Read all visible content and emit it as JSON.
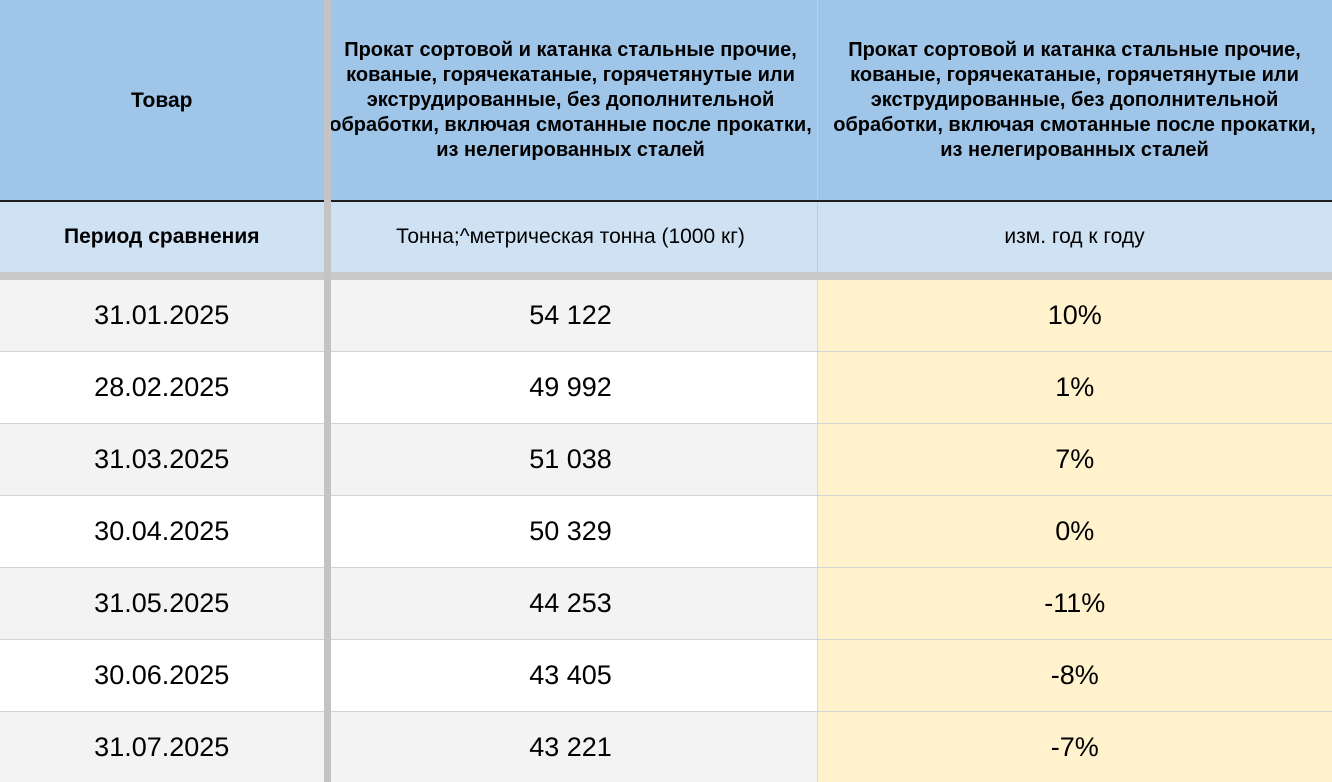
{
  "header": {
    "col1": "Товар",
    "col2": "Прокат сортовой и катанка стальные прочие, кованые, горячекатаные, горячетянутые или экструдированные, без дополнительной обработки, включая смотанные после прокатки, из нелегированных сталей",
    "col3": "Прокат сортовой и катанка стальные прочие, кованые, горячекатаные, горячетянутые или экструдированные, без дополнительной обработки, включая смотанные после прокатки, из нелегированных сталей"
  },
  "subheader": {
    "col1": "Период сравнения",
    "col2": "Тонна;^метрическая тонна (1000 кг)",
    "col3": "изм. год к году"
  },
  "rows": [
    {
      "date": "31.01.2025",
      "value": "54 122",
      "change": "10%"
    },
    {
      "date": "28.02.2025",
      "value": "49 992",
      "change": "1%"
    },
    {
      "date": "31.03.2025",
      "value": "51 038",
      "change": "7%"
    },
    {
      "date": "30.04.2025",
      "value": "50 329",
      "change": "0%"
    },
    {
      "date": "31.05.2025",
      "value": "44 253",
      "change": "-11%"
    },
    {
      "date": "30.06.2025",
      "value": "43 405",
      "change": "-8%"
    },
    {
      "date": "31.07.2025",
      "value": "43 221",
      "change": "-7%"
    }
  ],
  "colors": {
    "header_bg": "#9fc5e8",
    "subheader_bg": "#cfe2f3",
    "change_bg": "#fff2cc",
    "row_alt_bg": "#f3f3f3"
  }
}
